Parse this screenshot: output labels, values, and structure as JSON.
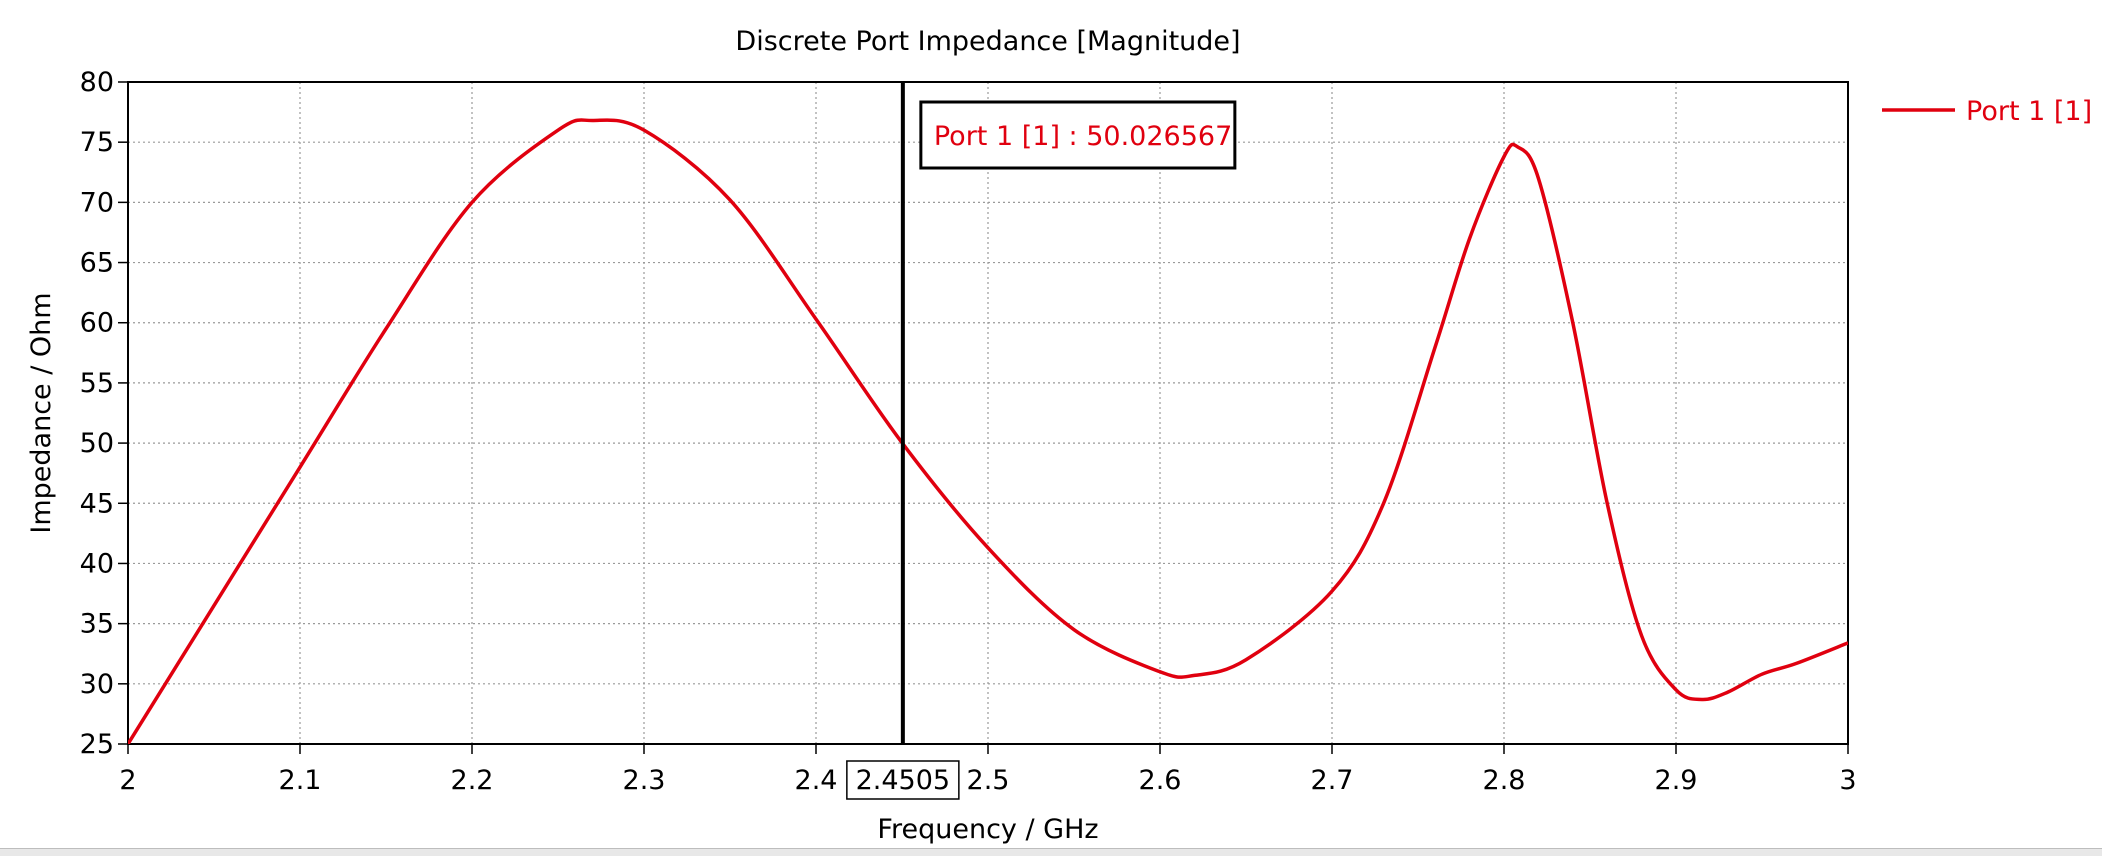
{
  "chart_data": {
    "type": "line",
    "title": "Discrete Port Impedance [Magnitude]",
    "xlabel": "Frequency / GHz",
    "ylabel": "Impedance / Ohm",
    "xlim": [
      2,
      3
    ],
    "ylim": [
      25,
      80
    ],
    "xticks": [
      2,
      2.1,
      2.2,
      2.3,
      2.4,
      2.5,
      2.6,
      2.7,
      2.8,
      2.9,
      3
    ],
    "xtick_labels": [
      "2",
      "2.1",
      "2.2",
      "2.3",
      "2.4",
      "2.5",
      "2.6",
      "2.7",
      "2.8",
      "2.9",
      "3"
    ],
    "yticks": [
      25,
      30,
      35,
      40,
      45,
      50,
      55,
      60,
      65,
      70,
      75,
      80
    ],
    "ytick_labels": [
      "25",
      "30",
      "35",
      "40",
      "45",
      "50",
      "55",
      "60",
      "65",
      "70",
      "75",
      "80"
    ],
    "grid": true,
    "legend_position": "top-right-outside",
    "series": [
      {
        "name": "Port 1 [1]",
        "color": "#e0000f",
        "x": [
          2.0,
          2.05,
          2.1,
          2.15,
          2.2,
          2.25,
          2.27,
          2.3,
          2.35,
          2.4,
          2.45,
          2.5,
          2.55,
          2.6,
          2.62,
          2.65,
          2.7,
          2.73,
          2.76,
          2.78,
          2.8,
          2.808,
          2.82,
          2.84,
          2.86,
          2.88,
          2.9,
          2.915,
          2.93,
          2.95,
          2.97,
          3.0
        ],
        "y": [
          25.0,
          36.5,
          48.0,
          59.5,
          70.0,
          76.0,
          76.8,
          76.0,
          70.2,
          60.3,
          50.03,
          41.3,
          34.5,
          31.0,
          30.7,
          32.0,
          37.7,
          45.0,
          58.0,
          67.0,
          73.8,
          74.6,
          72.0,
          60.0,
          45.0,
          34.0,
          29.5,
          28.7,
          29.3,
          30.8,
          31.7,
          33.4
        ]
      }
    ],
    "marker": {
      "x": 2.4505,
      "x_label": "2.4505",
      "readout": "Port 1 [1] : 50.026567",
      "readout_color": "#e0000f"
    }
  }
}
